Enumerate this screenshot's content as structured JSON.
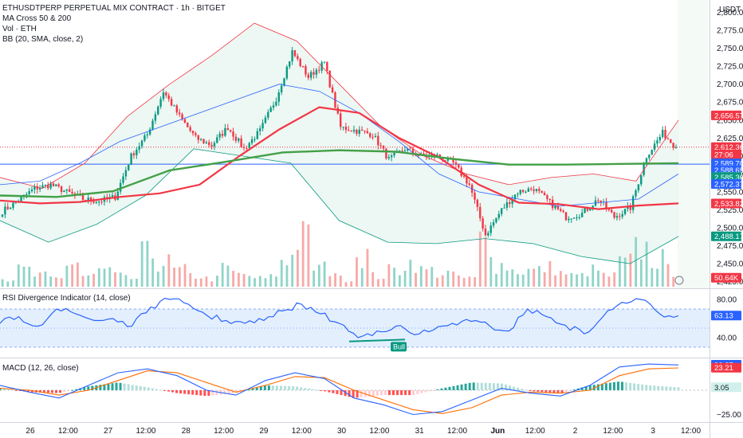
{
  "header": {
    "title": "ETHUSDTPERP PERPETUAL MIX CONTRACT · 1h · BITGET",
    "indicators": [
      "MA Cross 50 & 200",
      "Vol · ETH",
      "BB (20, SMA, close, 2)"
    ],
    "currency": "USDT"
  },
  "price_axis": {
    "ticks": [
      "2,800.00",
      "2,775.00",
      "2,750.00",
      "2,725.00",
      "2,700.00",
      "2,675.00",
      "2,650.00",
      "2,625.00",
      "2,600.00",
      "2,575.00",
      "2,550.00",
      "2,525.00",
      "2,500.00",
      "2,475.00",
      "2,450.00",
      "2,425.00"
    ],
    "badges": [
      {
        "text": "2,656.57",
        "color": "#f23645"
      },
      {
        "text": "2,612.36",
        "color": "#f23645"
      },
      {
        "text": "27:06",
        "color": "#f23645"
      },
      {
        "text": "2,589.70",
        "color": "#2962ff"
      },
      {
        "text": "2,588.65",
        "color": "#2962ff"
      },
      {
        "text": "2,585.36",
        "color": "#089981"
      },
      {
        "text": "2,572.37",
        "color": "#2962ff"
      },
      {
        "text": "2,533.82",
        "color": "#f23645"
      },
      {
        "text": "2,488.17",
        "color": "#089981"
      },
      {
        "text": "50.64K",
        "color": "#f23645"
      }
    ]
  },
  "rsi": {
    "label": "RSI Divergence Indicator (14, close)",
    "ticks": [
      "80.00",
      "40.00"
    ],
    "badge": "63.13",
    "signal": "Bull"
  },
  "macd": {
    "label": "MACD (12, 26, close)",
    "ticks": [
      "−25.00"
    ],
    "badges": [
      {
        "text": "26.27",
        "color": "#2962ff"
      },
      {
        "text": "23.21",
        "color": "#f23645"
      },
      {
        "text": "3.05",
        "color": "#d1f0eb"
      }
    ]
  },
  "time_axis": {
    "labels": [
      "26",
      "12:00",
      "27",
      "12:00",
      "28",
      "12:00",
      "29",
      "12:00",
      "30",
      "12:00",
      "31",
      "12:00",
      "Jun",
      "12:00",
      "2",
      "12:00",
      "3",
      "12:00"
    ]
  },
  "colors": {
    "up": "#089981",
    "down": "#f23645",
    "ma50": "#f23645",
    "ma200": "#43a047",
    "bb": "#2962ff",
    "bb_fill": "#e8f5f0"
  },
  "chart_data": [
    {
      "type": "line",
      "title": "ETHUSDTPERP PERPETUAL MIX CONTRACT · 1h · BITGET",
      "ylabel": "USDT",
      "ylim": [
        2418,
        2815
      ],
      "x_labels": [
        "26",
        "12:00",
        "27",
        "12:00",
        "28",
        "12:00",
        "29",
        "12:00",
        "30",
        "12:00",
        "31",
        "12:00",
        "Jun",
        "12:00",
        "2",
        "12:00",
        "3",
        "12:00"
      ],
      "series": [
        {
          "name": "close",
          "x": [
            0,
            6,
            12,
            18,
            24,
            30,
            36,
            42,
            48,
            54,
            60,
            66,
            72,
            78,
            84,
            90,
            96,
            102,
            108,
            114,
            120,
            126,
            132,
            138,
            144,
            150,
            156,
            162,
            168,
            174,
            180,
            186,
            192,
            198,
            204,
            210,
            216,
            222,
            228,
            234,
            240,
            246,
            251
          ],
          "values": [
            2523,
            2538,
            2555,
            2560,
            2550,
            2540,
            2537,
            2543,
            2600,
            2630,
            2690,
            2655,
            2625,
            2615,
            2640,
            2610,
            2635,
            2680,
            2745,
            2710,
            2730,
            2640,
            2635,
            2630,
            2595,
            2610,
            2600,
            2600,
            2590,
            2560,
            2490,
            2525,
            2550,
            2555,
            2535,
            2515,
            2520,
            2540,
            2515,
            2528,
            2600,
            2632,
            2612
          ]
        },
        {
          "name": "MA Cross 50 & 200",
          "values": [
            2538,
            2534,
            2536,
            2543,
            2548,
            2560,
            2600,
            2637,
            2668,
            2660,
            2625,
            2598,
            2560,
            2535,
            2533,
            2526,
            2531,
            2534
          ]
        },
        {
          "name": "MA Cross 50 & 200",
          "values": [
            2545,
            2543,
            2551,
            2580,
            2592,
            2605,
            2608,
            2606,
            2596,
            2588,
            2588,
            2589,
            2590
          ]
        },
        {
          "name": "BB (20, SMA, close, 2)",
          "values": [
            2560,
            2565,
            2590,
            2620,
            2640,
            2660,
            2680,
            2700,
            2690,
            2660,
            2620,
            2575,
            2550,
            2540,
            2530,
            2535,
            2540,
            2575
          ]
        },
        {
          "name": "BB (20, SMA, close, 2)",
          "values": [
            2570,
            2555,
            2590,
            2655,
            2700,
            2740,
            2785,
            2760,
            2700,
            2640,
            2600,
            2575,
            2560,
            2570,
            2575,
            2565,
            2650
          ]
        },
        {
          "name": "BB (20, SMA, close, 2)",
          "values": [
            2510,
            2480,
            2505,
            2545,
            2610,
            2600,
            2590,
            2510,
            2480,
            2478,
            2485,
            2478,
            2460,
            2450,
            2488
          ]
        }
      ]
    },
    {
      "type": "bar",
      "title": "Vol · ETH",
      "series": [
        {
          "name": "Vol · ETH",
          "values": [
            0.15,
            0.3,
            0.2,
            0.15,
            0.45,
            0.2,
            0.3,
            0.2,
            0.15,
            0.6,
            0.45,
            0.3,
            0.2,
            0.15,
            0.35,
            0.25,
            0.15,
            0.2,
            0.55,
            0.9,
            0.35,
            0.3,
            0.15,
            0.6,
            0.2,
            0.3,
            0.45,
            0.3,
            0.25,
            0.2,
            0.15,
            0.85,
            0.4,
            0.3,
            0.3,
            0.35,
            0.25,
            0.2,
            0.3,
            0.2,
            0.45,
            0.7,
            0.5,
            0.3
          ]
        }
      ]
    },
    {
      "type": "line",
      "title": "RSI Divergence Indicator (14, close)",
      "ylim": [
        20,
        90
      ],
      "series": [
        {
          "name": "RSI",
          "values": [
            55,
            62,
            52,
            70,
            65,
            58,
            60,
            52,
            72,
            80,
            75,
            63,
            58,
            55,
            58,
            68,
            75,
            65,
            55,
            40,
            47,
            52,
            43,
            48,
            55,
            57,
            52,
            47,
            70,
            62,
            53,
            44,
            62,
            77,
            80,
            65,
            63
          ]
        }
      ]
    },
    {
      "type": "line",
      "title": "MACD (12, 26, close)",
      "ylim": [
        -32,
        32
      ],
      "series": [
        {
          "name": "MACD",
          "values": [
            5,
            -2,
            -8,
            5,
            18,
            22,
            15,
            0,
            -5,
            10,
            18,
            12,
            -8,
            -15,
            -25,
            -22,
            -10,
            2,
            -3,
            -6,
            5,
            24,
            27,
            26
          ]
        },
        {
          "name": "Signal",
          "values": [
            2,
            0,
            -5,
            0,
            10,
            20,
            18,
            8,
            -2,
            5,
            14,
            13,
            0,
            -10,
            -20,
            -24,
            -18,
            -5,
            -2,
            -3,
            0,
            15,
            22,
            23
          ]
        },
        {
          "name": "Histogram",
          "values": [
            2,
            -2,
            -3,
            4,
            8,
            3,
            -3,
            -6,
            -3,
            5,
            4,
            -1,
            -8,
            -5,
            -5,
            2,
            8,
            7,
            -1,
            -3,
            5,
            9,
            5,
            3
          ]
        }
      ]
    }
  ]
}
